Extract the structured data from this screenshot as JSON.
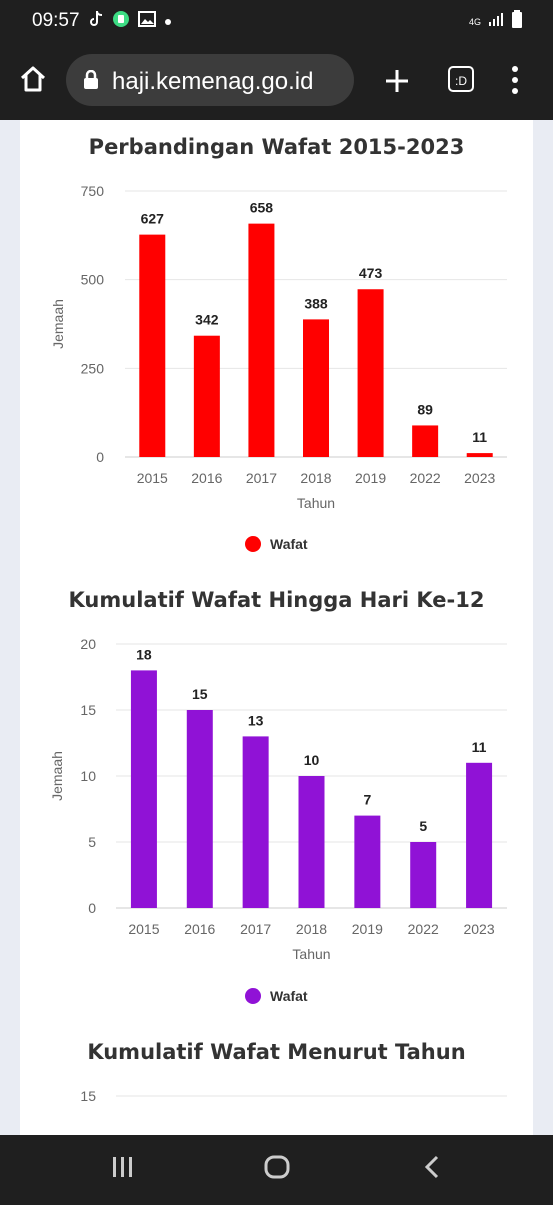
{
  "status_bar": {
    "time": "09:57",
    "network": "4G"
  },
  "browser": {
    "url": "haji.kemenag.go.id",
    "tab_button_label": ":D"
  },
  "charts": [
    {
      "title": "Perbandingan Wafat 2015-2023",
      "color": "#ff0000",
      "chart_data": {
        "type": "bar",
        "categories": [
          "2015",
          "2016",
          "2017",
          "2018",
          "2019",
          "2022",
          "2023"
        ],
        "series": [
          {
            "name": "Wafat",
            "values": [
              627,
              342,
              658,
              388,
              473,
              89,
              11
            ]
          }
        ],
        "ylim": [
          0,
          750
        ],
        "yticks": [
          "750",
          "500",
          "250",
          "0"
        ],
        "xlabel": "Tahun",
        "ylabel": "Jemaah",
        "legend": "bottom"
      }
    },
    {
      "title": "Kumulatif Wafat Hingga Hari Ke-12",
      "color": "#9012d6",
      "chart_data": {
        "type": "bar",
        "categories": [
          "2015",
          "2016",
          "2017",
          "2018",
          "2019",
          "2022",
          "2023"
        ],
        "series": [
          {
            "name": "Wafat",
            "values": [
              18,
              15,
              13,
              10,
              7,
              5,
              11
            ]
          }
        ],
        "ylim": [
          0,
          20
        ],
        "yticks": [
          "20",
          "15",
          "10",
          "5",
          "0"
        ],
        "xlabel": "Tahun",
        "ylabel": "Jemaah",
        "legend": "bottom"
      }
    },
    {
      "title": "Kumulatif Wafat Menurut Tahun",
      "chart_data": {
        "type": "bar",
        "yticks": [
          "15"
        ]
      }
    }
  ]
}
